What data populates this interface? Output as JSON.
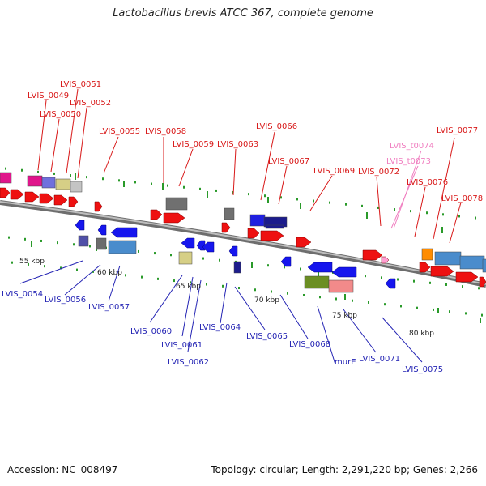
{
  "header": {
    "title": "Lactobacillus brevis ATCC 367, complete genome"
  },
  "footer": {
    "accession": "Accession: NC_008497",
    "summary": "Topology: circular; Length: 2,291,220 bp; Genes: 2,266"
  },
  "colors": {
    "forward_label": "#d81818",
    "reverse_label": "#2424b4",
    "trna_label": "#f07ec0",
    "backbone": "#8c8c8c",
    "tick": "#2a9a2a",
    "forward_gene": "#ee1111",
    "reverse_gene": "#1616ee"
  },
  "kbp_labels": [
    "55 kbp",
    "60 kbp",
    "65 kbp",
    "70 kbp",
    "75 kbp",
    "80 kbp"
  ],
  "forward_labels": [
    "LVIS_0049",
    "LVIS_0050",
    "LVIS_0051",
    "LVIS_0052",
    "LVIS_0055",
    "LVIS_0058",
    "LVIS_0059",
    "LVIS_0063",
    "LVIS_0066",
    "LVIS_0067",
    "LVIS_0069",
    "LVIS_0072",
    "LVIS_0076",
    "LVIS_0077",
    "LVIS_0078"
  ],
  "trna_labels": [
    "LVIS_t0074",
    "LVIS_t0073"
  ],
  "reverse_labels": [
    "LVIS_0054",
    "LVIS_0056",
    "LVIS_0057",
    "LVIS_0060",
    "LVIS_0061",
    "LVIS_0062",
    "LVIS_0064",
    "LVIS_0065",
    "LVIS_0068",
    "murE",
    "LVIS_0071",
    "LVIS_0075"
  ]
}
